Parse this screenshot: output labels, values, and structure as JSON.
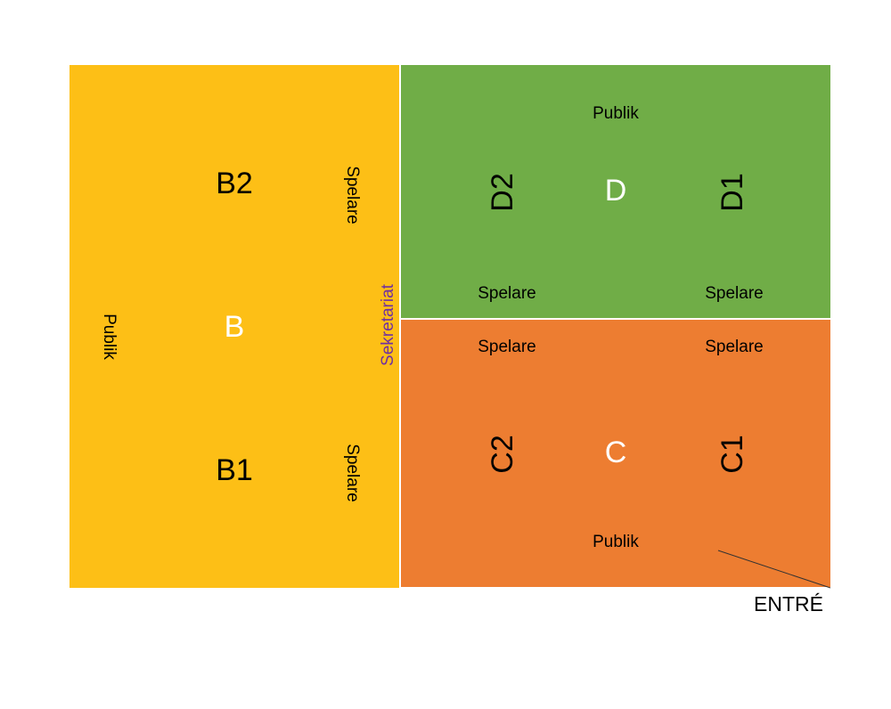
{
  "zones": {
    "b": {
      "label": "B",
      "courts": [
        "B2",
        "B1"
      ],
      "audience": "Publik",
      "players": [
        "Spelare",
        "Spelare"
      ]
    },
    "d": {
      "label": "D",
      "courts": [
        "D2",
        "D1"
      ],
      "audience": "Publik",
      "players": [
        "Spelare",
        "Spelare"
      ]
    },
    "c": {
      "label": "C",
      "courts": [
        "C2",
        "C1"
      ],
      "audience": "Publik",
      "players": [
        "Spelare",
        "Spelare"
      ]
    }
  },
  "secretariat": "Sekretariat",
  "entrance": "ENTRÉ"
}
